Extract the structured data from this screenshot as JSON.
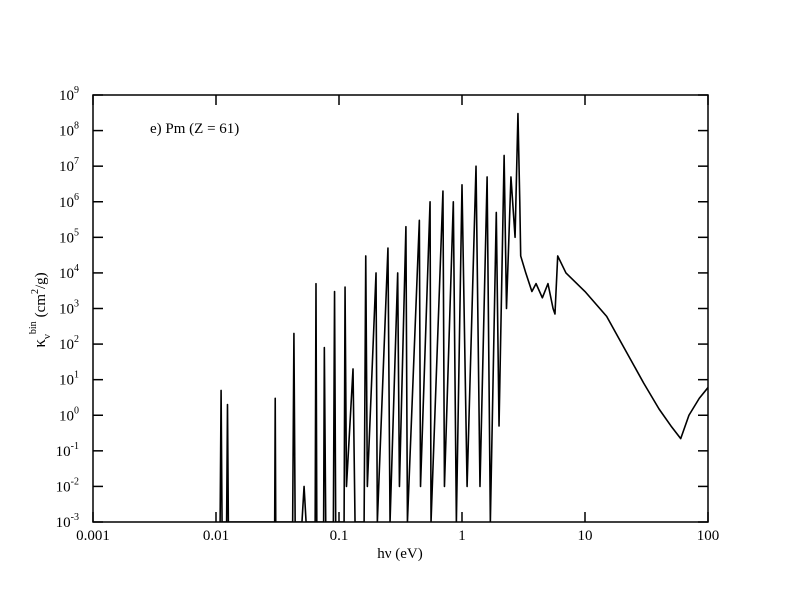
{
  "chart_data": {
    "type": "line",
    "annotation": "e) Pm (Z = 61)",
    "xlabel": "hν (eV)",
    "ylabel": {
      "symbol": "κ",
      "sub": "ν",
      "sup": "bin",
      "unit": "(cm",
      "unit_sup": "2",
      "unit_end": "/g)"
    },
    "xscale": "log",
    "yscale": "log",
    "xlim": [
      0.001,
      100
    ],
    "ylim": [
      0.001,
      1000000000
    ],
    "xticks": [
      0.001,
      0.01,
      0.1,
      1,
      10,
      100
    ],
    "yticks": [
      {
        "value": 0.001,
        "label": "10",
        "exponent": "-3"
      },
      {
        "value": 0.01,
        "label": "10",
        "exponent": "-2"
      },
      {
        "value": 0.1,
        "label": "10",
        "exponent": "-1"
      },
      {
        "value": 1,
        "label": "10",
        "exponent": "0"
      },
      {
        "value": 10,
        "label": "10",
        "exponent": "1"
      },
      {
        "value": 100,
        "label": "10",
        "exponent": "2"
      },
      {
        "value": 1000,
        "label": "10",
        "exponent": "3"
      },
      {
        "value": 10000,
        "label": "10",
        "exponent": "4"
      },
      {
        "value": 100000,
        "label": "10",
        "exponent": "5"
      },
      {
        "value": 1000000,
        "label": "10",
        "exponent": "6"
      },
      {
        "value": 10000000,
        "label": "10",
        "exponent": "7"
      },
      {
        "value": 100000000,
        "label": "10",
        "exponent": "8"
      },
      {
        "value": 1000000000,
        "label": "10",
        "exponent": "9"
      }
    ],
    "series": [
      {
        "color": "#000000",
        "x": [
          0.0108,
          0.011,
          0.0112,
          0.0122,
          0.0124,
          0.0126,
          0.03,
          0.0303,
          0.0306,
          0.042,
          0.043,
          0.044,
          0.05,
          0.052,
          0.054,
          0.064,
          0.065,
          0.066,
          0.075,
          0.076,
          0.078,
          0.09,
          0.092,
          0.094,
          0.11,
          0.112,
          0.115,
          0.13,
          0.135,
          0.16,
          0.165,
          0.17,
          0.2,
          0.205,
          0.25,
          0.26,
          0.3,
          0.31,
          0.35,
          0.36,
          0.45,
          0.46,
          0.55,
          0.56,
          0.7,
          0.72,
          0.85,
          0.9,
          1.0,
          1.1,
          1.3,
          1.4,
          1.6,
          1.7,
          1.9,
          2.0,
          2.2,
          2.3,
          2.5,
          2.7,
          2.85,
          2.95,
          3.0,
          3.3,
          3.7,
          4.0,
          4.5,
          5.0,
          5.5,
          5.7,
          6.0,
          7,
          10,
          15,
          20,
          30,
          40,
          50,
          60,
          70,
          85,
          100
        ],
        "values": [
          0.001,
          5,
          0.001,
          0.001,
          2,
          0.001,
          0.001,
          3,
          0.001,
          0.001,
          200,
          0.001,
          0.001,
          0.01,
          0.001,
          0.001,
          5000,
          0.001,
          0.001,
          80,
          0.001,
          0.001,
          3000,
          0.001,
          0.001,
          4000,
          0.01,
          20,
          0.001,
          0.001,
          30000,
          0.01,
          10000,
          0.001,
          50000,
          0.001,
          10000,
          0.01,
          200000,
          0.001,
          300000,
          0.01,
          1000000,
          0.001,
          2000000,
          0.01,
          1000000,
          0.001,
          3000000,
          0.01,
          10000000,
          0.01,
          5000000,
          0.001,
          500000,
          0.5,
          20000000,
          1000,
          5000000,
          100000,
          300000000,
          1000000,
          30000,
          10000,
          3000,
          5000,
          2000,
          5000,
          1000,
          700,
          30000,
          10000,
          3000,
          600,
          100,
          8,
          1.5,
          0.5,
          0.22,
          1,
          3,
          6
        ]
      }
    ]
  }
}
